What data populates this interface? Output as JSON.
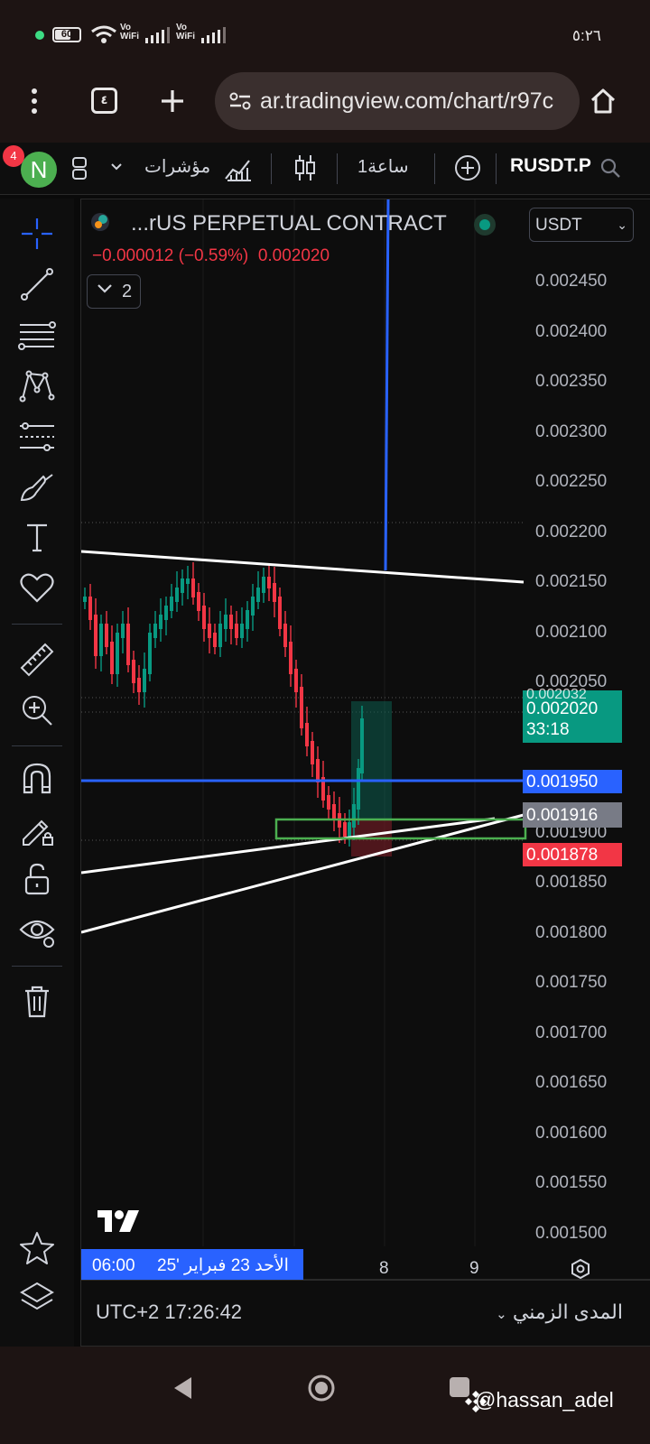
{
  "status_bar": {
    "battery": "60",
    "vowifi_1": "Vo\nWiFi",
    "vowifi_1a": "Vo",
    "vowifi_1b": "WiFi",
    "time": "٥:٢٦"
  },
  "browser": {
    "tab_count": "٤",
    "url": "ar.tradingview.com/chart/r97c"
  },
  "tv_header": {
    "notification_count": "4",
    "avatar_letter": "N",
    "indicators_label": "مؤشرات",
    "interval_label": "1ساعة",
    "symbol": "RUSDT.P"
  },
  "legend": {
    "title": "...rUS PERPETUAL CONTRACT",
    "change": "−0.000012 (−0.59%)",
    "last": "0.002020",
    "indicator_count": "2",
    "currency": "USDT"
  },
  "price_axis": {
    "ticks": [
      "0.002450",
      "0.002400",
      "0.002350",
      "0.002300",
      "0.002250",
      "0.002200",
      "0.002150",
      "0.002100",
      "0.002050",
      "0.001900",
      "0.001850",
      "0.001800",
      "0.001750",
      "0.001700",
      "0.001650",
      "0.001600",
      "0.001550",
      "0.001500"
    ],
    "tags": {
      "last_price": "0.002020",
      "countdown": "33:18",
      "hidden_top": "0.002032",
      "blue_line": "0.001950",
      "gray_line": "0.001916",
      "stop": "0.001878"
    },
    "colors": {
      "up": "#089981",
      "down": "#f23645",
      "blue_line": "#2962ff",
      "gray_tag": "#787b86"
    }
  },
  "time_axis": {
    "date_chip_time": "06:00",
    "date_chip_date": "الأحد 23 فبراير '25",
    "ticks": [
      "8",
      "9"
    ]
  },
  "bottom_bar": {
    "timezone": "UTC+2 17:26:42",
    "range_label": "المدى الزمني"
  },
  "watermark": "@hassan_adel"
}
